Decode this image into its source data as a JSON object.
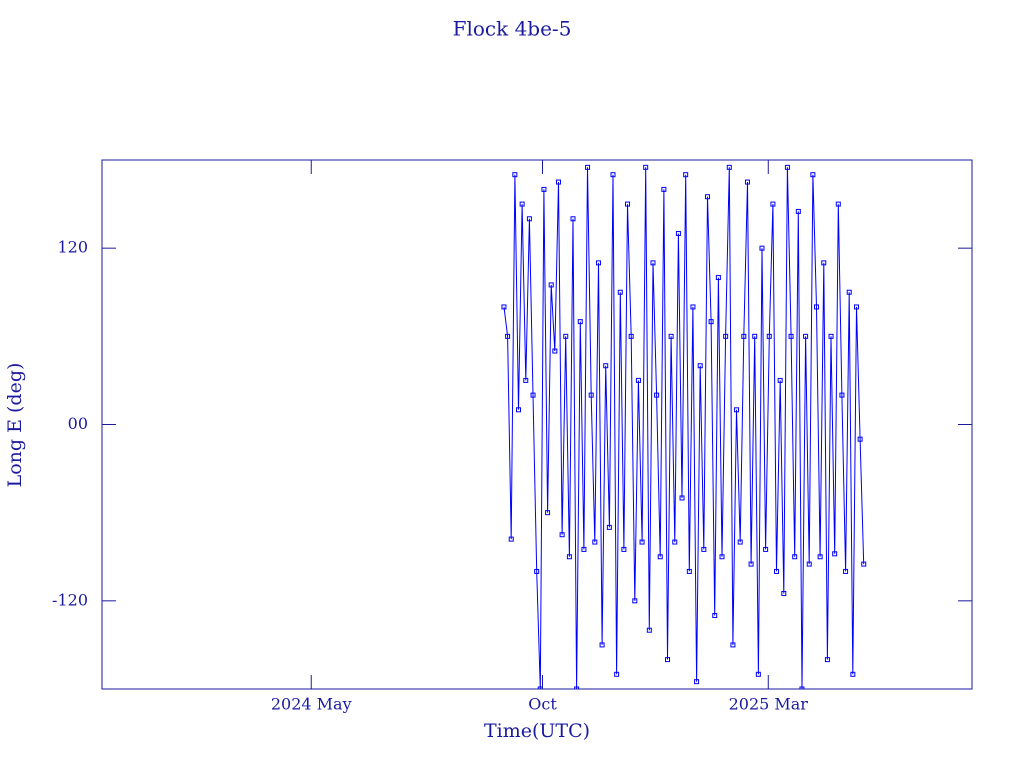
{
  "chart_data": {
    "type": "line",
    "title": "Flock 4be-5",
    "x_label": "Time(UTC)",
    "y_label": "Long E (deg)",
    "color": "#0000ff",
    "xlim": [
      2023.95,
      2025.53
    ],
    "xticks": [
      {
        "value": 2024.33,
        "label": "2024 May"
      },
      {
        "value": 2024.75,
        "label": "Oct"
      },
      {
        "value": 2025.16,
        "label": "2025 Mar"
      }
    ],
    "ylim": [
      -180,
      180
    ],
    "yticks": [
      -120,
      {
        "value": 0,
        "label": "00"
      },
      120
    ],
    "x": [
      2024.68,
      2024.6866,
      2024.6932,
      2024.6998,
      2024.7064,
      2024.713,
      2024.7196,
      2024.7262,
      2024.7328,
      2024.7394,
      2024.746,
      2024.7526,
      2024.7592,
      2024.7658,
      2024.7724,
      2024.779,
      2024.7856,
      2024.7922,
      2024.7988,
      2024.8054,
      2024.812,
      2024.8186,
      2024.8252,
      2024.8318,
      2024.8384,
      2024.845,
      2024.8516,
      2024.8582,
      2024.8648,
      2024.8714,
      2024.878,
      2024.8846,
      2024.8912,
      2024.8978,
      2024.9044,
      2024.911,
      2024.9176,
      2024.9242,
      2024.9308,
      2024.9374,
      2024.944,
      2024.9506,
      2024.9572,
      2024.9638,
      2024.9704,
      2024.977,
      2024.9836,
      2024.9902,
      2024.9968,
      2025.0034,
      2025.01,
      2025.0166,
      2025.0232,
      2025.0298,
      2025.0364,
      2025.043,
      2025.0496,
      2025.0562,
      2025.0628,
      2025.0694,
      2025.076,
      2025.0826,
      2025.0892,
      2025.0958,
      2025.1024,
      2025.109,
      2025.1156,
      2025.1222,
      2025.1288,
      2025.1354,
      2025.142,
      2025.1486,
      2025.1552,
      2025.1618,
      2025.1684,
      2025.175,
      2025.1816,
      2025.1882,
      2025.1948,
      2025.2014,
      2025.208,
      2025.2146,
      2025.2212,
      2025.2278,
      2025.2344,
      2025.241,
      2025.2476,
      2025.2542,
      2025.2608,
      2025.2674,
      2025.274,
      2025.2806,
      2025.2872,
      2025.2938,
      2025.3004,
      2025.307,
      2025.3136,
      2025.3202,
      2025.3268,
      2025.3334
    ],
    "values": [
      80,
      60,
      -78,
      170,
      10,
      150,
      30,
      140,
      20,
      -100,
      -180,
      160,
      -60,
      95,
      50,
      165,
      -75,
      60,
      -90,
      140,
      -180,
      70,
      -85,
      175,
      20,
      -80,
      110,
      -150,
      40,
      -70,
      170,
      -170,
      90,
      -85,
      150,
      60,
      -120,
      30,
      -80,
      175,
      -140,
      110,
      20,
      -90,
      160,
      -160,
      60,
      -80,
      130,
      -50,
      170,
      -100,
      80,
      -175,
      40,
      -85,
      155,
      70,
      -130,
      100,
      -90,
      60,
      175,
      -150,
      10,
      -80,
      60,
      165,
      -95,
      60,
      -170,
      120,
      -85,
      60,
      150,
      -100,
      30,
      -115,
      175,
      60,
      -90,
      145,
      -180,
      60,
      -95,
      170,
      80,
      -90,
      110,
      -160,
      60,
      -88,
      150,
      20,
      -100,
      90,
      -170,
      80,
      -10,
      -95
    ]
  }
}
